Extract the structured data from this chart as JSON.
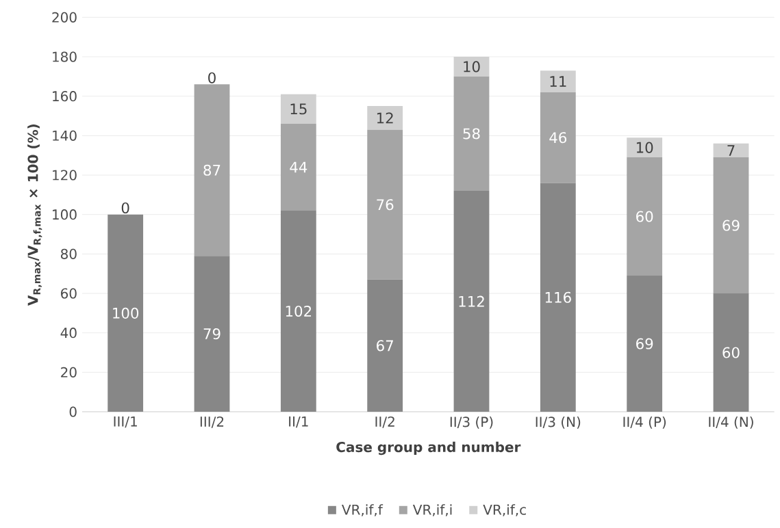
{
  "chart_data": {
    "type": "bar",
    "stacked": true,
    "xlabel": "Case group and number",
    "ylabel": "V$_{R,max}$/V$_{R,f,max}$ × 100 (%)",
    "categories": [
      "III/1",
      "III/2",
      "II/1",
      "II/2",
      "II/3 (P)",
      "II/3 (N)",
      "II/4 (P)",
      "II/4 (N)"
    ],
    "series": [
      {
        "name": "VR,if,f",
        "color": "#878787",
        "values": [
          100,
          79,
          102,
          67,
          112,
          116,
          69,
          60
        ],
        "value_labels": [
          "100",
          "79",
          "102",
          "67",
          "112",
          "116",
          "69",
          "60"
        ]
      },
      {
        "name": "VR,if,i",
        "color": "#a5a5a5",
        "values": [
          0,
          87,
          44,
          76,
          58,
          46,
          60,
          69
        ],
        "value_labels": [
          null,
          "87",
          "44",
          "76",
          "58",
          "46",
          "60",
          "69"
        ]
      },
      {
        "name": "VR,if,c",
        "color": "#d0d0d0",
        "values": [
          0,
          0,
          15,
          12,
          10,
          11,
          10,
          7
        ],
        "value_labels": [
          "0",
          "0",
          "15",
          "12",
          "10",
          "11",
          "10",
          "7"
        ]
      }
    ],
    "ylim": [
      0,
      200
    ],
    "yticks": [
      0,
      20,
      40,
      60,
      80,
      100,
      120,
      140,
      160,
      180,
      200
    ],
    "grid": "y",
    "legend": "bottom"
  }
}
